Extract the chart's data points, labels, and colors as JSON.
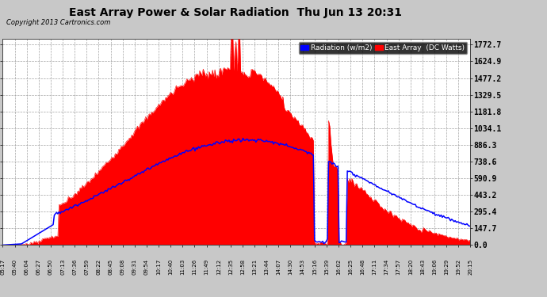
{
  "title": "East Array Power & Solar Radiation  Thu Jun 13 20:31",
  "copyright": "Copyright 2013 Cartronics.com",
  "yticks": [
    0.0,
    147.7,
    295.4,
    443.2,
    590.9,
    738.6,
    886.3,
    1034.1,
    1181.8,
    1329.5,
    1477.2,
    1624.9,
    1772.7
  ],
  "ymax": 1772.7,
  "ymin": 0.0,
  "legend_radiation_label": "Radiation (w/m2)",
  "legend_east_label": "East Array  (DC Watts)",
  "radiation_color": "#0000ff",
  "east_array_color": "#ff0000",
  "background_color": "#c8c8c8",
  "plot_bg_color": "#ffffff",
  "grid_color": "#999999",
  "title_color": "#000000",
  "copyright_color": "#000000",
  "xtick_labels": [
    "05:17",
    "05:40",
    "06:04",
    "06:27",
    "06:50",
    "07:13",
    "07:36",
    "07:59",
    "08:22",
    "08:45",
    "09:08",
    "09:31",
    "09:54",
    "10:17",
    "10:40",
    "11:03",
    "11:26",
    "11:49",
    "12:12",
    "12:35",
    "12:58",
    "13:21",
    "13:44",
    "14:07",
    "14:30",
    "14:53",
    "15:16",
    "15:39",
    "16:02",
    "16:25",
    "16:48",
    "17:11",
    "17:34",
    "17:57",
    "18:20",
    "18:43",
    "19:06",
    "19:29",
    "19:52",
    "20:15"
  ],
  "num_points": 400
}
